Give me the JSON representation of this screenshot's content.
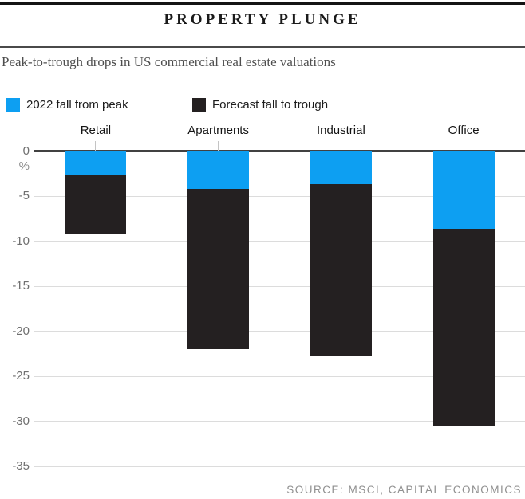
{
  "header": {
    "title": "PROPERTY PLUNGE",
    "subtitle": "Peak-to-trough drops in US commercial real estate valuations"
  },
  "legend": [
    {
      "label": "2022 fall from peak",
      "color": "#0d9ff2"
    },
    {
      "label": "Forecast fall to trough",
      "color": "#242021"
    }
  ],
  "source": "SOURCE: MSCI, CAPITAL ECONOMICS",
  "chart_data": {
    "type": "bar",
    "stacked": true,
    "title": "PROPERTY PLUNGE",
    "subtitle": "Peak-to-trough drops in US commercial real estate valuations",
    "unit": "%",
    "categories": [
      "Retail",
      "Apartments",
      "Industrial",
      "Office"
    ],
    "series": [
      {
        "name": "2022 fall from peak",
        "color": "#0d9ff2",
        "values": [
          -2.7,
          -4.2,
          -3.7,
          -8.6
        ]
      },
      {
        "name": "Forecast fall to trough",
        "color": "#242021",
        "values": [
          -9.2,
          -22,
          -22.7,
          -30.6
        ]
      }
    ],
    "yticks": [
      0,
      -5,
      -10,
      -15,
      -20,
      -25,
      -30,
      -35
    ],
    "ylim": [
      0,
      -35
    ],
    "grid": true,
    "legend_position": "top"
  }
}
